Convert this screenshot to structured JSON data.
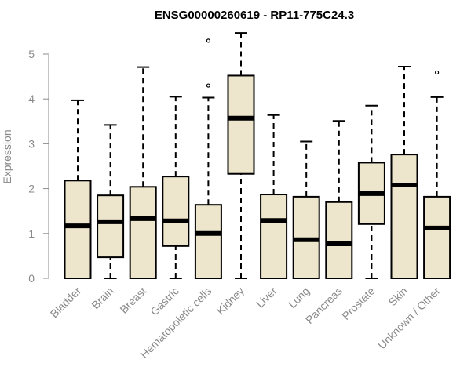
{
  "chart_data": {
    "type": "boxplot",
    "title": "ENSG00000260619 - RP11-775C24.3",
    "ylabel": "Expression",
    "xlabel": "",
    "ylim": [
      0,
      5
    ],
    "yticks": [
      "0",
      "1",
      "2",
      "3",
      "4",
      "5"
    ],
    "grid": false,
    "box_fill": "#ede6cc",
    "categories": [
      "Bladder",
      "Brain",
      "Breast",
      "Gastric",
      "Hematopoietic cells",
      "Kidney",
      "Liver",
      "Lung",
      "Pancreas",
      "Prostate",
      "Skin",
      "Unknown / Other"
    ],
    "boxes": [
      {
        "category": "Bladder",
        "min": 0,
        "q1": 0,
        "median": 1.17,
        "q3": 2.18,
        "max": 3.97,
        "outliers": []
      },
      {
        "category": "Brain",
        "min": 0,
        "q1": 0.47,
        "median": 1.26,
        "q3": 1.85,
        "max": 3.42,
        "outliers": []
      },
      {
        "category": "Breast",
        "min": 0,
        "q1": 0,
        "median": 1.33,
        "q3": 2.04,
        "max": 4.71,
        "outliers": []
      },
      {
        "category": "Gastric",
        "min": 0,
        "q1": 0.72,
        "median": 1.28,
        "q3": 2.27,
        "max": 4.05,
        "outliers": []
      },
      {
        "category": "Hematopoietic cells",
        "min": 0,
        "q1": 0,
        "median": 1.0,
        "q3": 1.64,
        "max": 4.03,
        "outliers": [
          4.3,
          5.3
        ]
      },
      {
        "category": "Kidney",
        "min": 0,
        "q1": 2.33,
        "median": 3.57,
        "q3": 4.52,
        "max": 5.47,
        "outliers": []
      },
      {
        "category": "Liver",
        "min": 0,
        "q1": 0,
        "median": 1.29,
        "q3": 1.87,
        "max": 3.64,
        "outliers": []
      },
      {
        "category": "Lung",
        "min": 0,
        "q1": 0,
        "median": 0.86,
        "q3": 1.82,
        "max": 3.05,
        "outliers": []
      },
      {
        "category": "Pancreas",
        "min": 0,
        "q1": 0,
        "median": 0.77,
        "q3": 1.7,
        "max": 3.51,
        "outliers": []
      },
      {
        "category": "Prostate",
        "min": 0,
        "q1": 1.21,
        "median": 1.89,
        "q3": 2.58,
        "max": 3.85,
        "outliers": []
      },
      {
        "category": "Skin",
        "min": 0,
        "q1": 0,
        "median": 2.08,
        "q3": 2.76,
        "max": 4.72,
        "outliers": []
      },
      {
        "category": "Unknown / Other",
        "min": 0,
        "q1": 0,
        "median": 1.12,
        "q3": 1.82,
        "max": 4.04,
        "outliers": [
          4.59
        ]
      }
    ]
  }
}
